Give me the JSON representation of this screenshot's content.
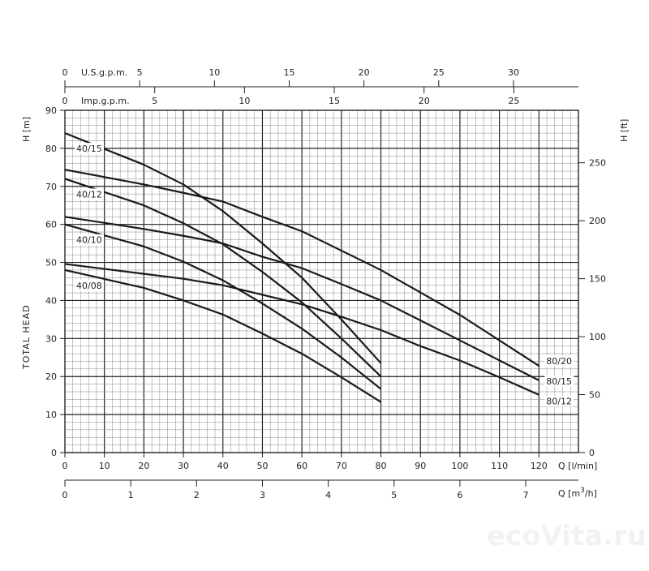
{
  "chart_data": {
    "type": "line",
    "title": "",
    "xlabel": "Q [l/min]",
    "ylabel": "H [m]",
    "ylabel_right": "H [ft]",
    "side_label": "TOTAL HEAD",
    "xlim": [
      0,
      130
    ],
    "ylim": [
      0,
      90
    ],
    "grid": true,
    "x_ticks": [
      0,
      10,
      20,
      30,
      40,
      50,
      60,
      70,
      80,
      90,
      100,
      110,
      120
    ],
    "y_ticks": [
      0,
      10,
      20,
      30,
      40,
      50,
      60,
      70,
      80,
      90
    ],
    "ft_axis": {
      "label": "H [ft]",
      "ticks": [
        0,
        50,
        100,
        150,
        200,
        250
      ]
    },
    "m3h_axis": {
      "label": "Q [m³/h]",
      "label_base": "Q [m",
      "label_sup": "3",
      "label_end": "/h]",
      "ticks": [
        0,
        1,
        2,
        3,
        4,
        5,
        6,
        7
      ]
    },
    "usgpm_axis": {
      "label": "U.S.g.p.m.",
      "ticks": [
        0,
        5,
        10,
        15,
        20,
        25,
        30
      ]
    },
    "impgpm_axis": {
      "label": "Imp.g.p.m.",
      "ticks": [
        0,
        5,
        10,
        15,
        20,
        25
      ]
    },
    "series": [
      {
        "name": "40/15",
        "x": [
          0,
          20,
          30,
          40,
          50,
          60,
          70,
          80
        ],
        "y": [
          84,
          75.7,
          70.5,
          63.5,
          55,
          46,
          35,
          23.5
        ]
      },
      {
        "name": "40/12",
        "x": [
          0,
          20,
          30,
          40,
          50,
          60,
          70,
          80
        ],
        "y": [
          72,
          65,
          60.3,
          54.8,
          47.5,
          39.5,
          30,
          20
        ]
      },
      {
        "name": "40/10",
        "x": [
          0,
          20,
          30,
          40,
          50,
          60,
          70,
          80
        ],
        "y": [
          60,
          54.2,
          50.2,
          45.3,
          39.2,
          32.6,
          25,
          16.7
        ]
      },
      {
        "name": "40/08",
        "x": [
          0,
          20,
          30,
          40,
          50,
          60,
          70,
          80
        ],
        "y": [
          48,
          43.3,
          40,
          36.3,
          31.3,
          26,
          19.8,
          13.3
        ]
      },
      {
        "name": "80/20",
        "x": [
          0,
          20,
          30,
          40,
          50,
          60,
          80,
          100,
          120
        ],
        "y": [
          74.4,
          70.5,
          68.3,
          66,
          62,
          58.2,
          48,
          36.2,
          22.8
        ]
      },
      {
        "name": "80/15",
        "x": [
          0,
          20,
          30,
          40,
          50,
          60,
          70,
          80,
          100,
          120
        ],
        "y": [
          62,
          58.8,
          57,
          55,
          51.5,
          48.5,
          44.3,
          40,
          29.5,
          19
        ]
      },
      {
        "name": "80/12",
        "x": [
          0,
          20,
          30,
          40,
          50,
          60,
          70,
          80,
          90,
          100,
          110,
          120
        ],
        "y": [
          49.6,
          47,
          45.7,
          44,
          41.5,
          39,
          35.7,
          32.2,
          28,
          24.2,
          19.8,
          15.2
        ]
      }
    ],
    "line_color": "#1a1a1a",
    "grid_color": "#555555"
  },
  "watermark": "ecoVita.ru"
}
